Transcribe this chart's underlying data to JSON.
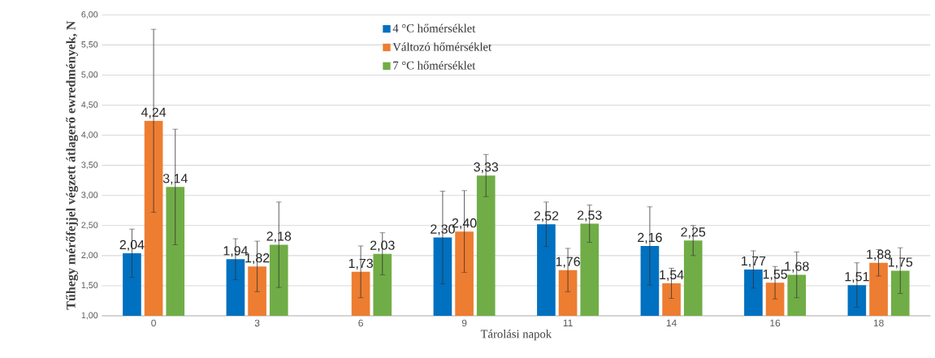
{
  "chart_data": {
    "type": "bar",
    "xlabel": "Tárolási napok",
    "ylabel": "Tűhegy mérőfejjel végzett átlagerő ewredmények, N",
    "categories": [
      "0",
      "3",
      "6",
      "9",
      "11",
      "14",
      "16",
      "18"
    ],
    "series": [
      {
        "name": "4 °C hőmérséklet",
        "color": "#0070c0",
        "values": [
          2.04,
          1.94,
          null,
          2.3,
          2.52,
          2.16,
          1.77,
          1.51
        ],
        "errors": [
          0.4,
          0.34,
          null,
          0.77,
          0.37,
          0.65,
          0.31,
          0.37
        ],
        "value_labels": [
          "2,04",
          "1,94",
          null,
          "2,30",
          "2,52",
          "2,16",
          "1,77",
          "1,51"
        ]
      },
      {
        "name": "Változó hőmérséklet",
        "color": "#ed7d31",
        "values": [
          4.24,
          1.82,
          1.73,
          2.4,
          1.76,
          1.54,
          1.55,
          1.88
        ],
        "errors": [
          1.52,
          0.42,
          0.43,
          0.68,
          0.36,
          0.25,
          0.27,
          0.22
        ],
        "value_labels": [
          "4,24",
          "1,82",
          "1,73",
          "2,40",
          "1,76",
          "1,54",
          "1,55",
          "1,88"
        ]
      },
      {
        "name": "7 °C hőmérséklet",
        "color": "#70ad47",
        "values": [
          3.14,
          2.18,
          2.03,
          3.33,
          2.53,
          2.25,
          1.68,
          1.75
        ],
        "errors": [
          0.96,
          0.71,
          0.35,
          0.35,
          0.31,
          0.25,
          0.38,
          0.38
        ],
        "value_labels": [
          "3,14",
          "2,18",
          "2,03",
          "3,33",
          "2,53",
          "2,25",
          "1,68",
          "1,75"
        ]
      }
    ],
    "ylim": [
      1.0,
      6.0
    ],
    "yticks": [
      {
        "value": 1.0,
        "label": "1,00"
      },
      {
        "value": 1.5,
        "label": "1,50"
      },
      {
        "value": 2.0,
        "label": "2,00"
      },
      {
        "value": 2.5,
        "label": "2,50"
      },
      {
        "value": 3.0,
        "label": "3,00"
      },
      {
        "value": 3.5,
        "label": "3,50"
      },
      {
        "value": 4.0,
        "label": "4,00"
      },
      {
        "value": 4.5,
        "label": "4,50"
      },
      {
        "value": 5.0,
        "label": "5,00"
      },
      {
        "value": 5.5,
        "label": "5,50"
      },
      {
        "value": 6.0,
        "label": "6,00"
      }
    ],
    "grid": "y",
    "legend": "top"
  }
}
